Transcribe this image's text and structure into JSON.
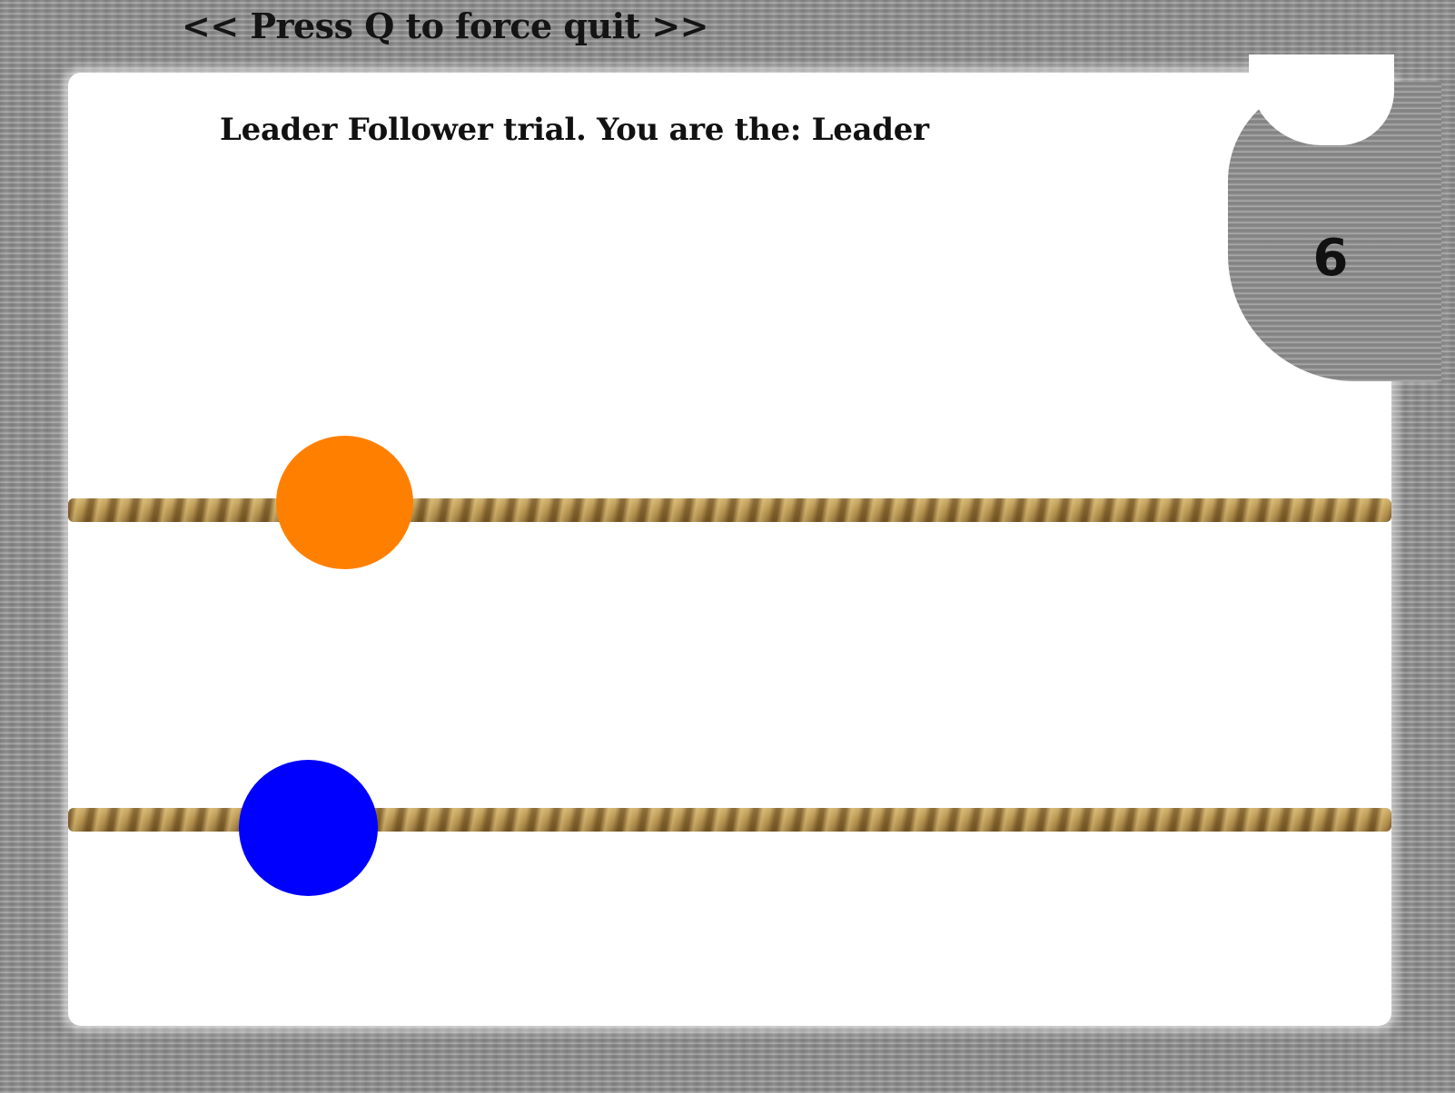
{
  "header": {
    "quit_hint": "<< Press Q to force quit >>"
  },
  "instruction": "Leader Follower trial. You are the: Leader",
  "counter": {
    "value": "6"
  },
  "balls": {
    "top_color": "#FF8000",
    "bottom_color": "#0000FF"
  },
  "colors": {
    "rope": "#B08D4A",
    "frame": "#8E8E8E",
    "play_area": "#FFFFFF"
  }
}
